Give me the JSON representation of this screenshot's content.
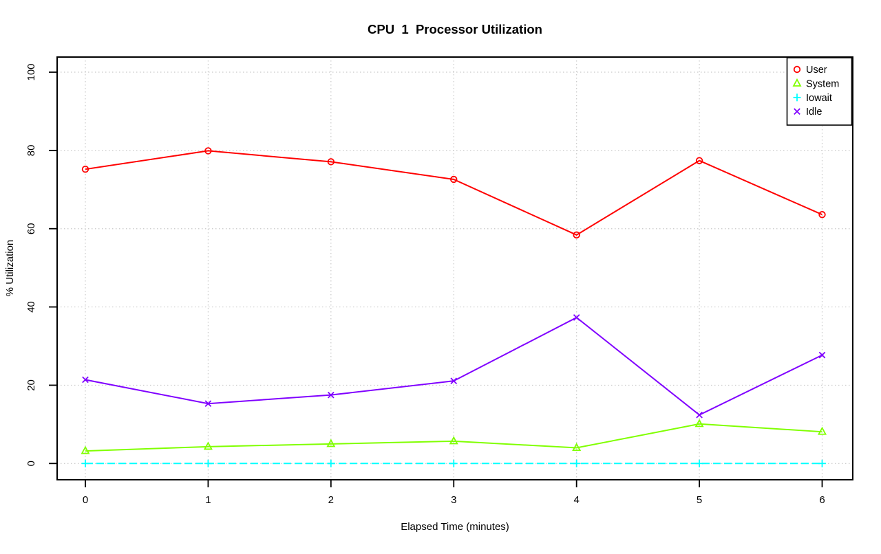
{
  "title": "CPU  1  Processor Utilization",
  "chart_data": {
    "type": "line",
    "title": "CPU  1  Processor Utilization",
    "xlabel": "Elapsed Time (minutes)",
    "ylabel": "% Utilization",
    "x": [
      0,
      1,
      2,
      3,
      4,
      5,
      6
    ],
    "xticks": [
      0,
      1,
      2,
      3,
      4,
      5,
      6
    ],
    "yticks": [
      0,
      20,
      40,
      60,
      80,
      100
    ],
    "xlim": [
      0,
      6
    ],
    "ylim": [
      0,
      100
    ],
    "grid": "dotted-lightgray",
    "grid_color": "#c8c8c8",
    "legend_position": "topright",
    "series": [
      {
        "name": "User",
        "marker": "circle",
        "color": "#ff0000",
        "dashed": false,
        "values": [
          75.2,
          79.9,
          77.1,
          72.6,
          58.4,
          77.4,
          63.6
        ]
      },
      {
        "name": "System",
        "marker": "triangle",
        "color": "#80ff00",
        "dashed": false,
        "values": [
          3.2,
          4.3,
          5.0,
          5.7,
          4.0,
          10.1,
          8.1
        ]
      },
      {
        "name": "Iowait",
        "marker": "plus",
        "color": "#00ffff",
        "dashed": true,
        "values": [
          0,
          0,
          0,
          0,
          0,
          0,
          0
        ]
      },
      {
        "name": "Idle",
        "marker": "x",
        "color": "#8000ff",
        "dashed": false,
        "values": [
          21.4,
          15.3,
          17.5,
          21.1,
          37.3,
          12.4,
          27.7
        ]
      }
    ]
  }
}
